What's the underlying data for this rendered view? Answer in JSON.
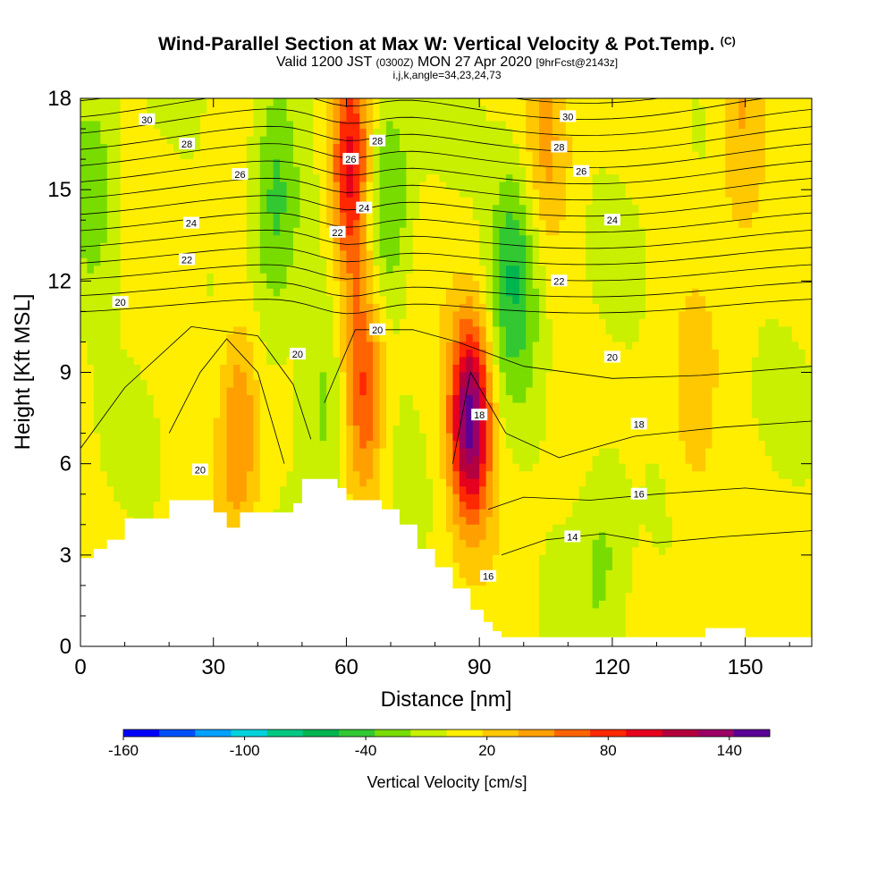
{
  "header": {
    "title": "Wind-Parallel Section at Max W: Vertical Velocity & Pot.Temp.",
    "copyright": "(C)",
    "subtitle_valid": "Valid 1200 JST",
    "subtitle_utc": "(0300Z)",
    "subtitle_date": "MON 27 Apr 2020",
    "subtitle_fcst": "[9hrFcst@2143z]",
    "indices": "i,j,k,angle=34,23,24,73"
  },
  "colorbar": {
    "label": "Vertical Velocity [cm/s]",
    "tick_labels": [
      "-160",
      "-100",
      "-40",
      "20",
      "80",
      "140"
    ],
    "tick_values": [
      -160,
      -100,
      -40,
      20,
      80,
      140
    ],
    "colors": [
      "#0000ff",
      "#0050ff",
      "#00a0ff",
      "#00d2dc",
      "#00c882",
      "#00b450",
      "#32c832",
      "#78dc00",
      "#c8f000",
      "#ffee00",
      "#ffc800",
      "#ffa000",
      "#ff6400",
      "#ff2800",
      "#e6001e",
      "#b4003c",
      "#9b0064",
      "#5a0096"
    ]
  },
  "chart_data": {
    "type": "heatmap",
    "xlabel": "Distance [nm]",
    "ylabel": "Height [Kft MSL]",
    "xlim": [
      0,
      165
    ],
    "ylim": [
      0,
      18
    ],
    "x_ticks": [
      0,
      30,
      60,
      90,
      120,
      150
    ],
    "y_ticks": [
      0,
      3,
      6,
      9,
      12,
      15,
      18
    ],
    "colorbar_range": [
      -160,
      160
    ],
    "terrain": [
      [
        0,
        2.9
      ],
      [
        3,
        3.2
      ],
      [
        6,
        3.5
      ],
      [
        10,
        4.2
      ],
      [
        20,
        4.8
      ],
      [
        30,
        4.4
      ],
      [
        33,
        3.9
      ],
      [
        36,
        4.4
      ],
      [
        48,
        4.7
      ],
      [
        50,
        5.5
      ],
      [
        56,
        5.5
      ],
      [
        58,
        5.2
      ],
      [
        60,
        4.8
      ],
      [
        66,
        4.8
      ],
      [
        68,
        4.5
      ],
      [
        72,
        4.0
      ],
      [
        76,
        3.2
      ],
      [
        80,
        2.6
      ],
      [
        84,
        1.9
      ],
      [
        88,
        1.2
      ],
      [
        91,
        0.8
      ],
      [
        93,
        0.5
      ],
      [
        95,
        0.3
      ],
      [
        140,
        0.3
      ],
      [
        141,
        0.6
      ],
      [
        149,
        0.6
      ],
      [
        150,
        0.3
      ],
      [
        165,
        0.3
      ]
    ],
    "vertical_velocity_features": [
      {
        "x": 88,
        "y": 7.5,
        "peak": 150
      },
      {
        "x": 61,
        "y": 15.5,
        "peak": 100
      },
      {
        "x": 64,
        "y": 8.5,
        "peak": 70
      },
      {
        "x": 36,
        "y": 7.5,
        "peak": 50
      },
      {
        "x": 98,
        "y": 12.5,
        "peak": -60
      },
      {
        "x": 44,
        "y": 15.0,
        "peak": -50
      },
      {
        "x": 69,
        "y": 14.5,
        "peak": -45
      },
      {
        "x": 55,
        "y": 8.0,
        "peak": -35
      },
      {
        "x": 3,
        "y": 15.0,
        "peak": -30
      },
      {
        "x": 118,
        "y": 3.5,
        "peak": -25
      },
      {
        "x": 138,
        "y": 7.0,
        "peak": 22
      },
      {
        "x": 105,
        "y": 17.0,
        "peak": 35
      },
      {
        "x": 149,
        "y": 17.0,
        "peak": 38
      }
    ],
    "potential_temperature_labels": [
      {
        "text": "30",
        "x": 15,
        "y": 17.3
      },
      {
        "text": "28",
        "x": 24,
        "y": 16.5
      },
      {
        "text": "26",
        "x": 36,
        "y": 15.5
      },
      {
        "text": "24",
        "x": 25,
        "y": 13.9
      },
      {
        "text": "22",
        "x": 24,
        "y": 12.7
      },
      {
        "text": "20",
        "x": 9,
        "y": 11.3
      },
      {
        "text": "20",
        "x": 49,
        "y": 9.6
      },
      {
        "text": "20",
        "x": 27,
        "y": 5.8
      },
      {
        "text": "22",
        "x": 58,
        "y": 13.6
      },
      {
        "text": "26",
        "x": 61,
        "y": 16.0
      },
      {
        "text": "28",
        "x": 67,
        "y": 16.6
      },
      {
        "text": "24",
        "x": 64,
        "y": 14.4
      },
      {
        "text": "20",
        "x": 67,
        "y": 10.4
      },
      {
        "text": "18",
        "x": 90,
        "y": 7.6
      },
      {
        "text": "16",
        "x": 92,
        "y": 2.3
      },
      {
        "text": "30",
        "x": 110,
        "y": 17.4
      },
      {
        "text": "28",
        "x": 108,
        "y": 16.4
      },
      {
        "text": "26",
        "x": 113,
        "y": 15.6
      },
      {
        "text": "24",
        "x": 120,
        "y": 14.0
      },
      {
        "text": "22",
        "x": 108,
        "y": 12.0
      },
      {
        "text": "20",
        "x": 120,
        "y": 9.5
      },
      {
        "text": "18",
        "x": 126,
        "y": 7.3
      },
      {
        "text": "16",
        "x": 126,
        "y": 5.0
      },
      {
        "text": "14",
        "x": 111,
        "y": 3.6
      }
    ]
  }
}
